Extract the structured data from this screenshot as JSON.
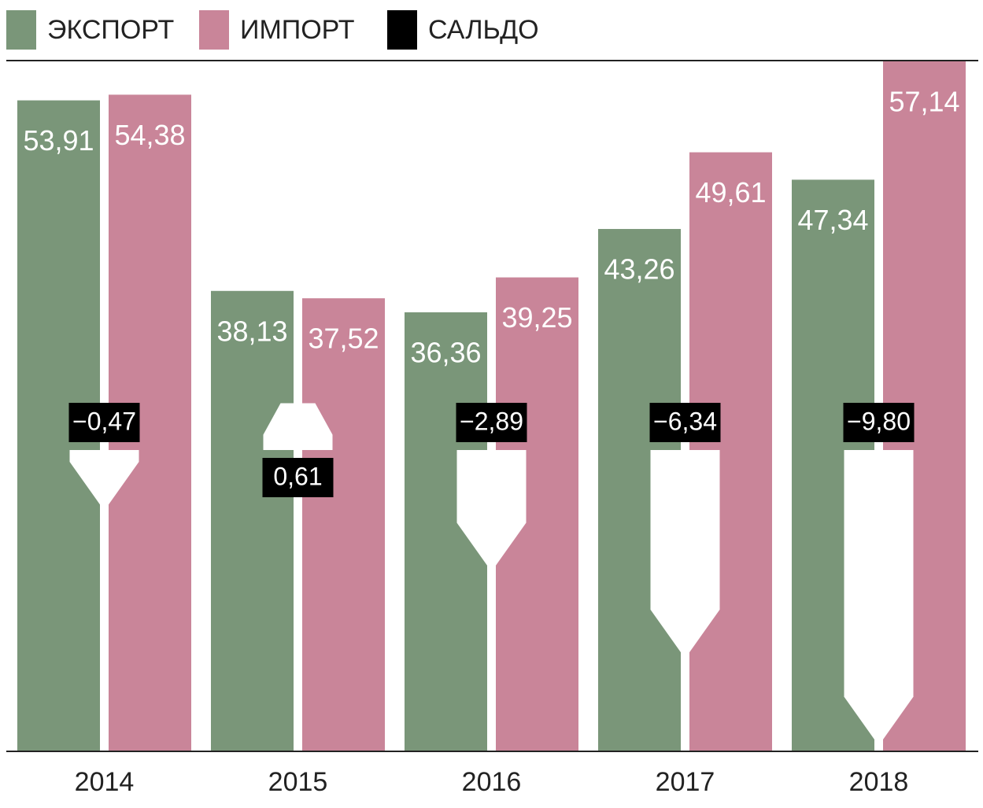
{
  "chart_data": {
    "type": "bar",
    "categories": [
      "2014",
      "2015",
      "2016",
      "2017",
      "2018"
    ],
    "series": [
      {
        "name": "ЭКСПОРТ",
        "color": "#7a9679",
        "values": [
          53.91,
          38.13,
          36.36,
          43.26,
          47.34
        ],
        "value_labels": [
          "53,91",
          "38,13",
          "36,36",
          "43,26",
          "47,34"
        ]
      },
      {
        "name": "ИМПОРТ",
        "color": "#c98599",
        "values": [
          54.38,
          37.52,
          39.25,
          49.61,
          57.14
        ],
        "value_labels": [
          "54,38",
          "37,52",
          "39,25",
          "49,61",
          "57,14"
        ]
      },
      {
        "name": "САЛЬДО",
        "color": "#000000",
        "values": [
          -0.47,
          0.61,
          -2.89,
          -6.34,
          -9.8
        ],
        "value_labels": [
          "−0,47",
          "0,61",
          "−2,89",
          "−6,34",
          "−9,80"
        ]
      }
    ]
  }
}
